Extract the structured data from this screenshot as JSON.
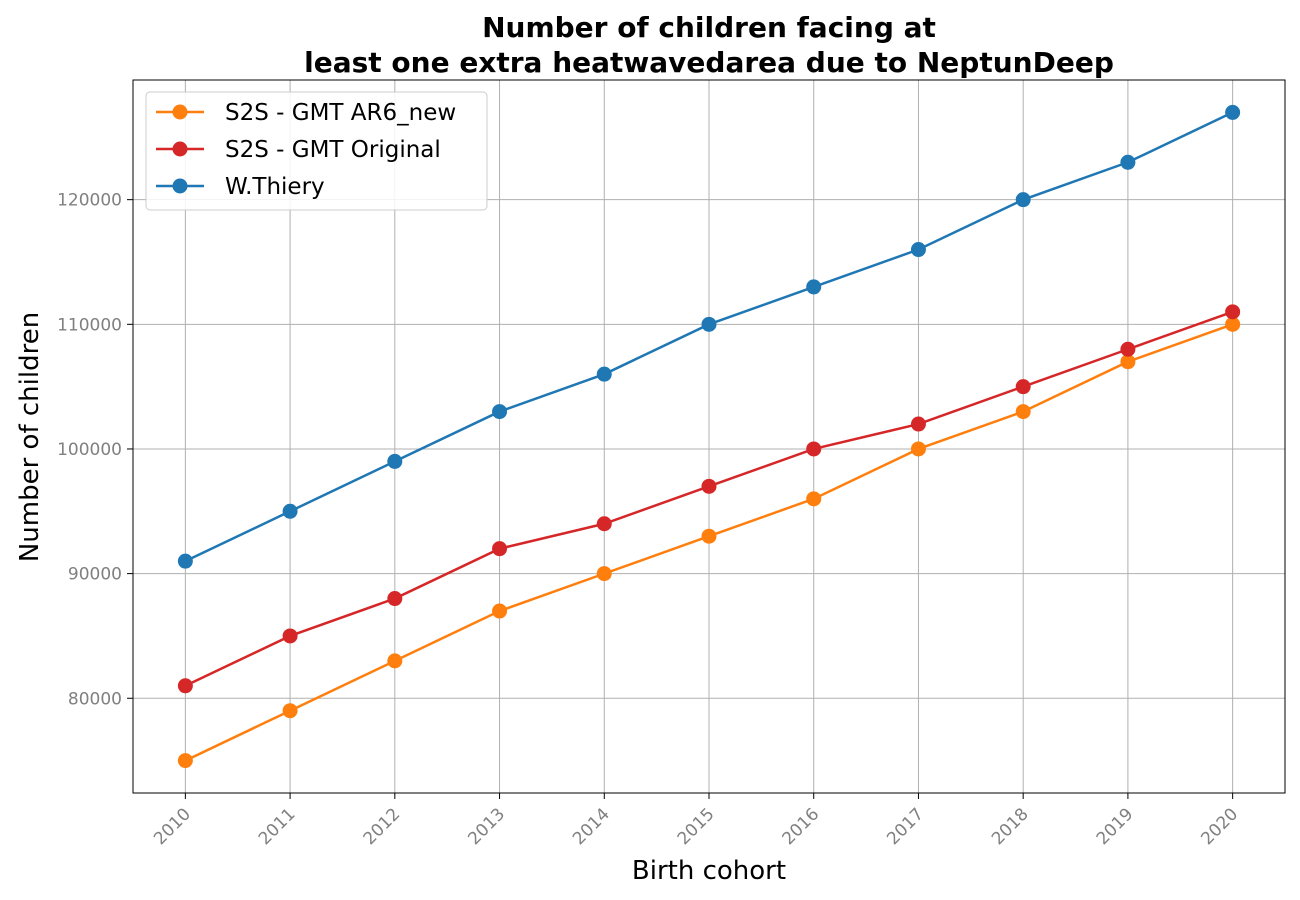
{
  "chart_data": {
    "type": "line",
    "title_lines": [
      "Number of children facing at",
      "least one extra heatwavedarea due to NeptunDeep"
    ],
    "xlabel": "Birth cohort",
    "ylabel": "Number of children",
    "x": [
      2010,
      2011,
      2012,
      2013,
      2014,
      2015,
      2016,
      2017,
      2018,
      2019,
      2020
    ],
    "x_tick_labels": [
      "2010",
      "2011",
      "2012",
      "2013",
      "2014",
      "2015",
      "2016",
      "2017",
      "2018",
      "2019",
      "2020"
    ],
    "y_ticks": [
      80000,
      90000,
      100000,
      110000,
      120000
    ],
    "y_tick_labels": [
      "80000",
      "90000",
      "100000",
      "110000",
      "120000"
    ],
    "xlim": [
      2009.5,
      2020.5
    ],
    "ylim": [
      72400,
      129600
    ],
    "grid": true,
    "legend_position": "upper-left",
    "series": [
      {
        "name": "S2S - GMT AR6_new",
        "color": "#ff7f0e",
        "values": [
          75000,
          79000,
          83000,
          87000,
          90000,
          93000,
          96000,
          100000,
          103000,
          107000,
          110000
        ]
      },
      {
        "name": "S2S - GMT Original",
        "color": "#d62728",
        "values": [
          81000,
          85000,
          88000,
          92000,
          94000,
          97000,
          100000,
          102000,
          105000,
          108000,
          111000
        ]
      },
      {
        "name": "W.Thiery",
        "color": "#1f77b4",
        "values": [
          91000,
          95000,
          99000,
          103000,
          106000,
          110000,
          113000,
          116000,
          120000,
          123000,
          127000
        ]
      }
    ]
  }
}
